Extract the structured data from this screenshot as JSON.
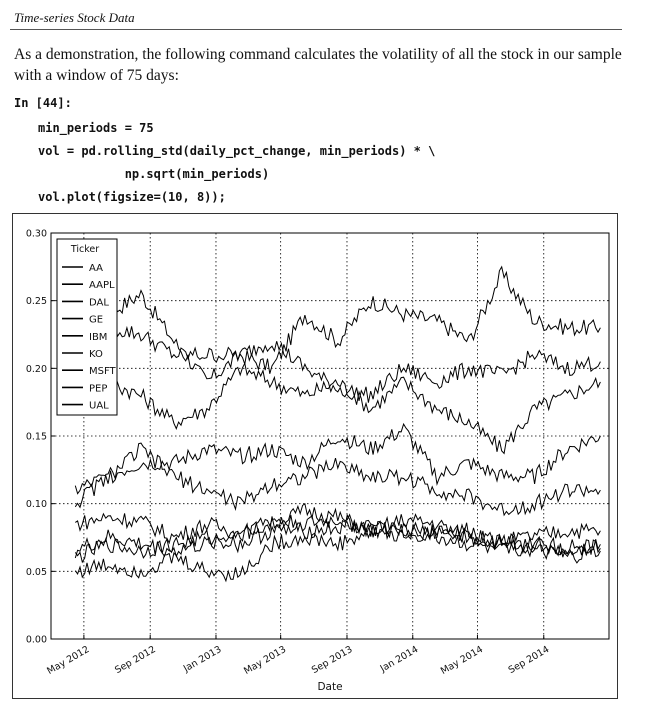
{
  "header": {
    "section_title": "Time-series Stock Data"
  },
  "text": {
    "paragraph": "As a demonstration, the following command calculates the volatility of all the stock in our sample with a window of 75 days:"
  },
  "code": {
    "prompt": "In [44]:",
    "lines": [
      "min_periods = 75",
      "vol = pd.rolling_std(daily_pct_change, min_periods) * \\",
      "            np.sqrt(min_periods)",
      "vol.plot(figsize=(10, 8));"
    ]
  },
  "chart_data": {
    "type": "line",
    "xlabel": "Date",
    "ylabel": "",
    "ylim": [
      0.0,
      0.3
    ],
    "xlim": [
      "2012-03-01",
      "2014-12-31"
    ],
    "yticks": [
      "0.00",
      "0.05",
      "0.10",
      "0.15",
      "0.20",
      "0.25",
      "0.30"
    ],
    "xticks": [
      "May 2012",
      "Sep 2012",
      "Jan 2013",
      "May 2013",
      "Sep 2013",
      "Jan 2014",
      "May 2014",
      "Sep 2014"
    ],
    "grid": true,
    "legend": {
      "title": "Ticker",
      "placement": "top-left"
    },
    "x": [
      "2012-04",
      "2012-06",
      "2012-08",
      "2012-10",
      "2012-12",
      "2013-02",
      "2013-04",
      "2013-06",
      "2013-08",
      "2013-10",
      "2013-12",
      "2014-02",
      "2014-04",
      "2014-06",
      "2014-08",
      "2014-10",
      "2014-12"
    ],
    "series": [
      {
        "name": "AA",
        "values": [
          0.25,
          0.24,
          0.255,
          0.22,
          0.19,
          0.21,
          0.2,
          0.24,
          0.22,
          0.25,
          0.24,
          0.235,
          0.22,
          0.27,
          0.235,
          0.23,
          0.23
        ]
      },
      {
        "name": "AAPL",
        "values": [
          0.18,
          0.19,
          0.18,
          0.16,
          0.17,
          0.2,
          0.19,
          0.18,
          0.19,
          0.17,
          0.19,
          0.17,
          0.16,
          0.14,
          0.17,
          0.18,
          0.19
        ]
      },
      {
        "name": "DAL",
        "values": [
          0.21,
          0.23,
          0.225,
          0.21,
          0.21,
          0.21,
          0.22,
          0.2,
          0.185,
          0.18,
          0.2,
          0.19,
          0.2,
          0.195,
          0.21,
          0.2,
          0.205
        ]
      },
      {
        "name": "GE",
        "values": [
          0.085,
          0.09,
          0.087,
          0.075,
          0.085,
          0.078,
          0.085,
          0.095,
          0.09,
          0.08,
          0.088,
          0.085,
          0.075,
          0.072,
          0.076,
          0.08,
          0.08
        ]
      },
      {
        "name": "IBM",
        "values": [
          0.06,
          0.07,
          0.065,
          0.07,
          0.075,
          0.07,
          0.08,
          0.08,
          0.082,
          0.085,
          0.08,
          0.075,
          0.07,
          0.065,
          0.07,
          0.065,
          0.07
        ]
      },
      {
        "name": "KO",
        "values": [
          0.065,
          0.075,
          0.07,
          0.065,
          0.07,
          0.08,
          0.088,
          0.085,
          0.088,
          0.08,
          0.075,
          0.08,
          0.08,
          0.07,
          0.065,
          0.06,
          0.065
        ]
      },
      {
        "name": "MSFT",
        "values": [
          0.1,
          0.12,
          0.14,
          0.12,
          0.11,
          0.1,
          0.115,
          0.12,
          0.13,
          0.12,
          0.12,
          0.11,
          0.105,
          0.095,
          0.1,
          0.11,
          0.11
        ]
      },
      {
        "name": "PEP",
        "values": [
          0.05,
          0.055,
          0.05,
          0.06,
          0.05,
          0.048,
          0.07,
          0.075,
          0.07,
          0.078,
          0.08,
          0.08,
          0.075,
          0.073,
          0.07,
          0.068,
          0.067
        ]
      },
      {
        "name": "UAL",
        "values": [
          0.11,
          0.12,
          0.13,
          0.13,
          0.14,
          0.135,
          0.14,
          0.13,
          0.15,
          0.14,
          0.155,
          0.12,
          0.13,
          0.12,
          0.12,
          0.14,
          0.15
        ]
      }
    ]
  }
}
